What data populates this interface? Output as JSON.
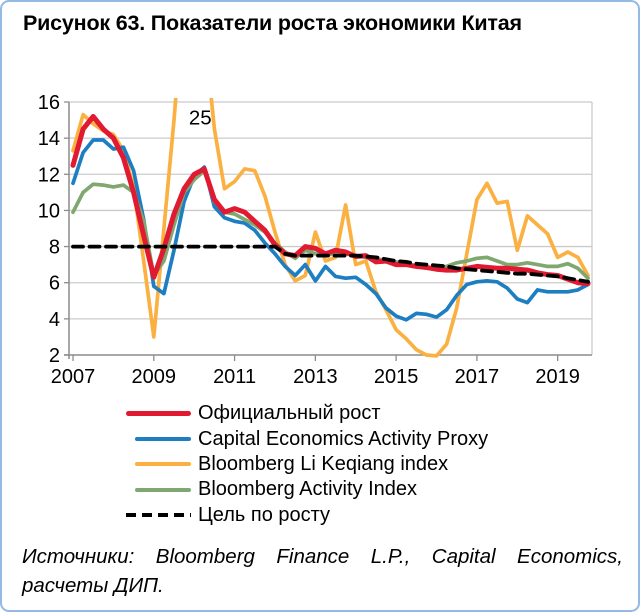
{
  "title": "Рисунок 63. Показатели роста экономики Китая",
  "source": {
    "line1": "Источники: Bloomberg Finance L.P., Capital Economics,",
    "line2": "расчеты ДИП."
  },
  "colors": {
    "card_border": "#93B9E4",
    "gridline": "#CBCBCB",
    "axis": "#8C8C8C"
  },
  "chart_data": {
    "type": "line",
    "title": "Рисунок 63. Показатели роста экономики Китая",
    "xlabel": "",
    "ylabel": "",
    "xlim": [
      2006.9,
      2019.85
    ],
    "ylim": [
      2,
      16
    ],
    "grid": true,
    "legend_position": "bottom-left",
    "x_ticks": [
      2007,
      2009,
      2011,
      2013,
      2015,
      2017,
      2019
    ],
    "y_ticks": [
      16,
      14,
      12,
      10,
      8,
      6,
      4,
      2
    ],
    "x_start": 2007.0,
    "x_step": 0.25,
    "annotation": {
      "text": "25",
      "x": 2010.15,
      "y": 14.75
    },
    "series": [
      {
        "id": "official-growth",
        "name": "Официальный рост",
        "color": "#E11931",
        "width": 5,
        "dash": null,
        "values": [
          12.5,
          14.5,
          15.2,
          14.5,
          14.0,
          12.9,
          11.0,
          8.6,
          6.3,
          7.9,
          9.8,
          11.2,
          12.0,
          12.3,
          10.6,
          9.9,
          10.1,
          9.9,
          9.4,
          8.9,
          8.1,
          7.6,
          7.5,
          8.0,
          7.9,
          7.6,
          7.8,
          7.7,
          7.45,
          7.5,
          7.15,
          7.2,
          7.0,
          7.0,
          6.9,
          6.85,
          6.75,
          6.7,
          6.7,
          6.8,
          6.9,
          6.85,
          6.8,
          6.8,
          6.75,
          6.7,
          6.55,
          6.45,
          6.4,
          6.2,
          6.0,
          5.95
        ]
      },
      {
        "id": "capital-economics-activity-proxy",
        "name": "Capital Economics Activity Proxy",
        "color": "#1D7EC2",
        "width": 3.7,
        "dash": null,
        "values": [
          11.5,
          13.2,
          13.9,
          13.9,
          13.4,
          13.5,
          12.2,
          9.5,
          5.8,
          5.4,
          7.8,
          10.5,
          11.9,
          12.4,
          10.2,
          9.6,
          9.4,
          9.3,
          8.9,
          8.2,
          7.6,
          6.9,
          6.4,
          7.0,
          6.1,
          6.9,
          6.35,
          6.25,
          6.3,
          5.9,
          5.4,
          4.6,
          4.15,
          3.95,
          4.3,
          4.25,
          4.1,
          4.5,
          5.3,
          5.9,
          6.05,
          6.1,
          6.05,
          5.7,
          5.1,
          4.9,
          5.6,
          5.5,
          5.5,
          5.5,
          5.6,
          5.9
        ]
      },
      {
        "id": "bloomberg-li-keqiang-index",
        "name": "Bloomberg Li Keqiang index",
        "color": "#FBB042",
        "width": 3.7,
        "dash": null,
        "values": [
          13.3,
          15.3,
          14.8,
          14.4,
          14.2,
          13.3,
          11.3,
          7.2,
          3.0,
          9.0,
          15.0,
          22.0,
          25.0,
          20.0,
          14.5,
          11.2,
          11.6,
          12.3,
          12.2,
          10.8,
          8.8,
          7.0,
          6.1,
          6.4,
          8.8,
          7.2,
          7.4,
          10.3,
          7.0,
          7.2,
          5.5,
          4.5,
          3.4,
          2.9,
          2.3,
          2.0,
          1.95,
          2.6,
          4.6,
          7.6,
          10.6,
          11.5,
          10.4,
          10.5,
          7.8,
          9.7,
          9.2,
          8.7,
          7.4,
          7.7,
          7.4,
          6.4
        ]
      },
      {
        "id": "bloomberg-activity-index",
        "name": "Bloomberg Activity Index",
        "color": "#7FA870",
        "width": 3.7,
        "dash": null,
        "values": [
          9.9,
          11.0,
          11.45,
          11.4,
          11.3,
          11.4,
          11.0,
          9.4,
          6.4,
          7.2,
          9.2,
          11.0,
          11.7,
          12.2,
          10.5,
          9.9,
          9.8,
          9.5,
          9.2,
          8.8,
          8.2,
          7.7,
          7.35,
          7.8,
          7.6,
          7.5,
          7.65,
          7.6,
          7.5,
          7.4,
          7.3,
          7.25,
          7.15,
          7.05,
          6.9,
          6.8,
          6.8,
          6.9,
          7.1,
          7.2,
          7.35,
          7.4,
          7.2,
          7.0,
          7.0,
          7.1,
          7.0,
          6.9,
          6.9,
          7.05,
          6.8,
          6.25
        ]
      },
      {
        "id": "growth-target",
        "name": "Цель по росту",
        "color": "#000000",
        "width": 3.8,
        "dash": "10 6.5",
        "values": [
          8,
          8,
          8,
          8,
          8,
          8,
          8,
          8,
          8,
          8,
          8,
          8,
          8,
          8,
          8,
          8,
          8,
          8,
          8,
          8,
          8.0,
          7.6,
          7.5,
          7.5,
          7.5,
          7.5,
          7.5,
          7.5,
          7.5,
          7.45,
          7.4,
          7.3,
          7.2,
          7.15,
          7.05,
          7.0,
          6.95,
          6.9,
          6.8,
          6.75,
          6.7,
          6.65,
          6.6,
          6.55,
          6.5,
          6.5,
          6.45,
          6.4,
          6.35,
          6.25,
          6.15,
          6.05
        ]
      }
    ]
  }
}
